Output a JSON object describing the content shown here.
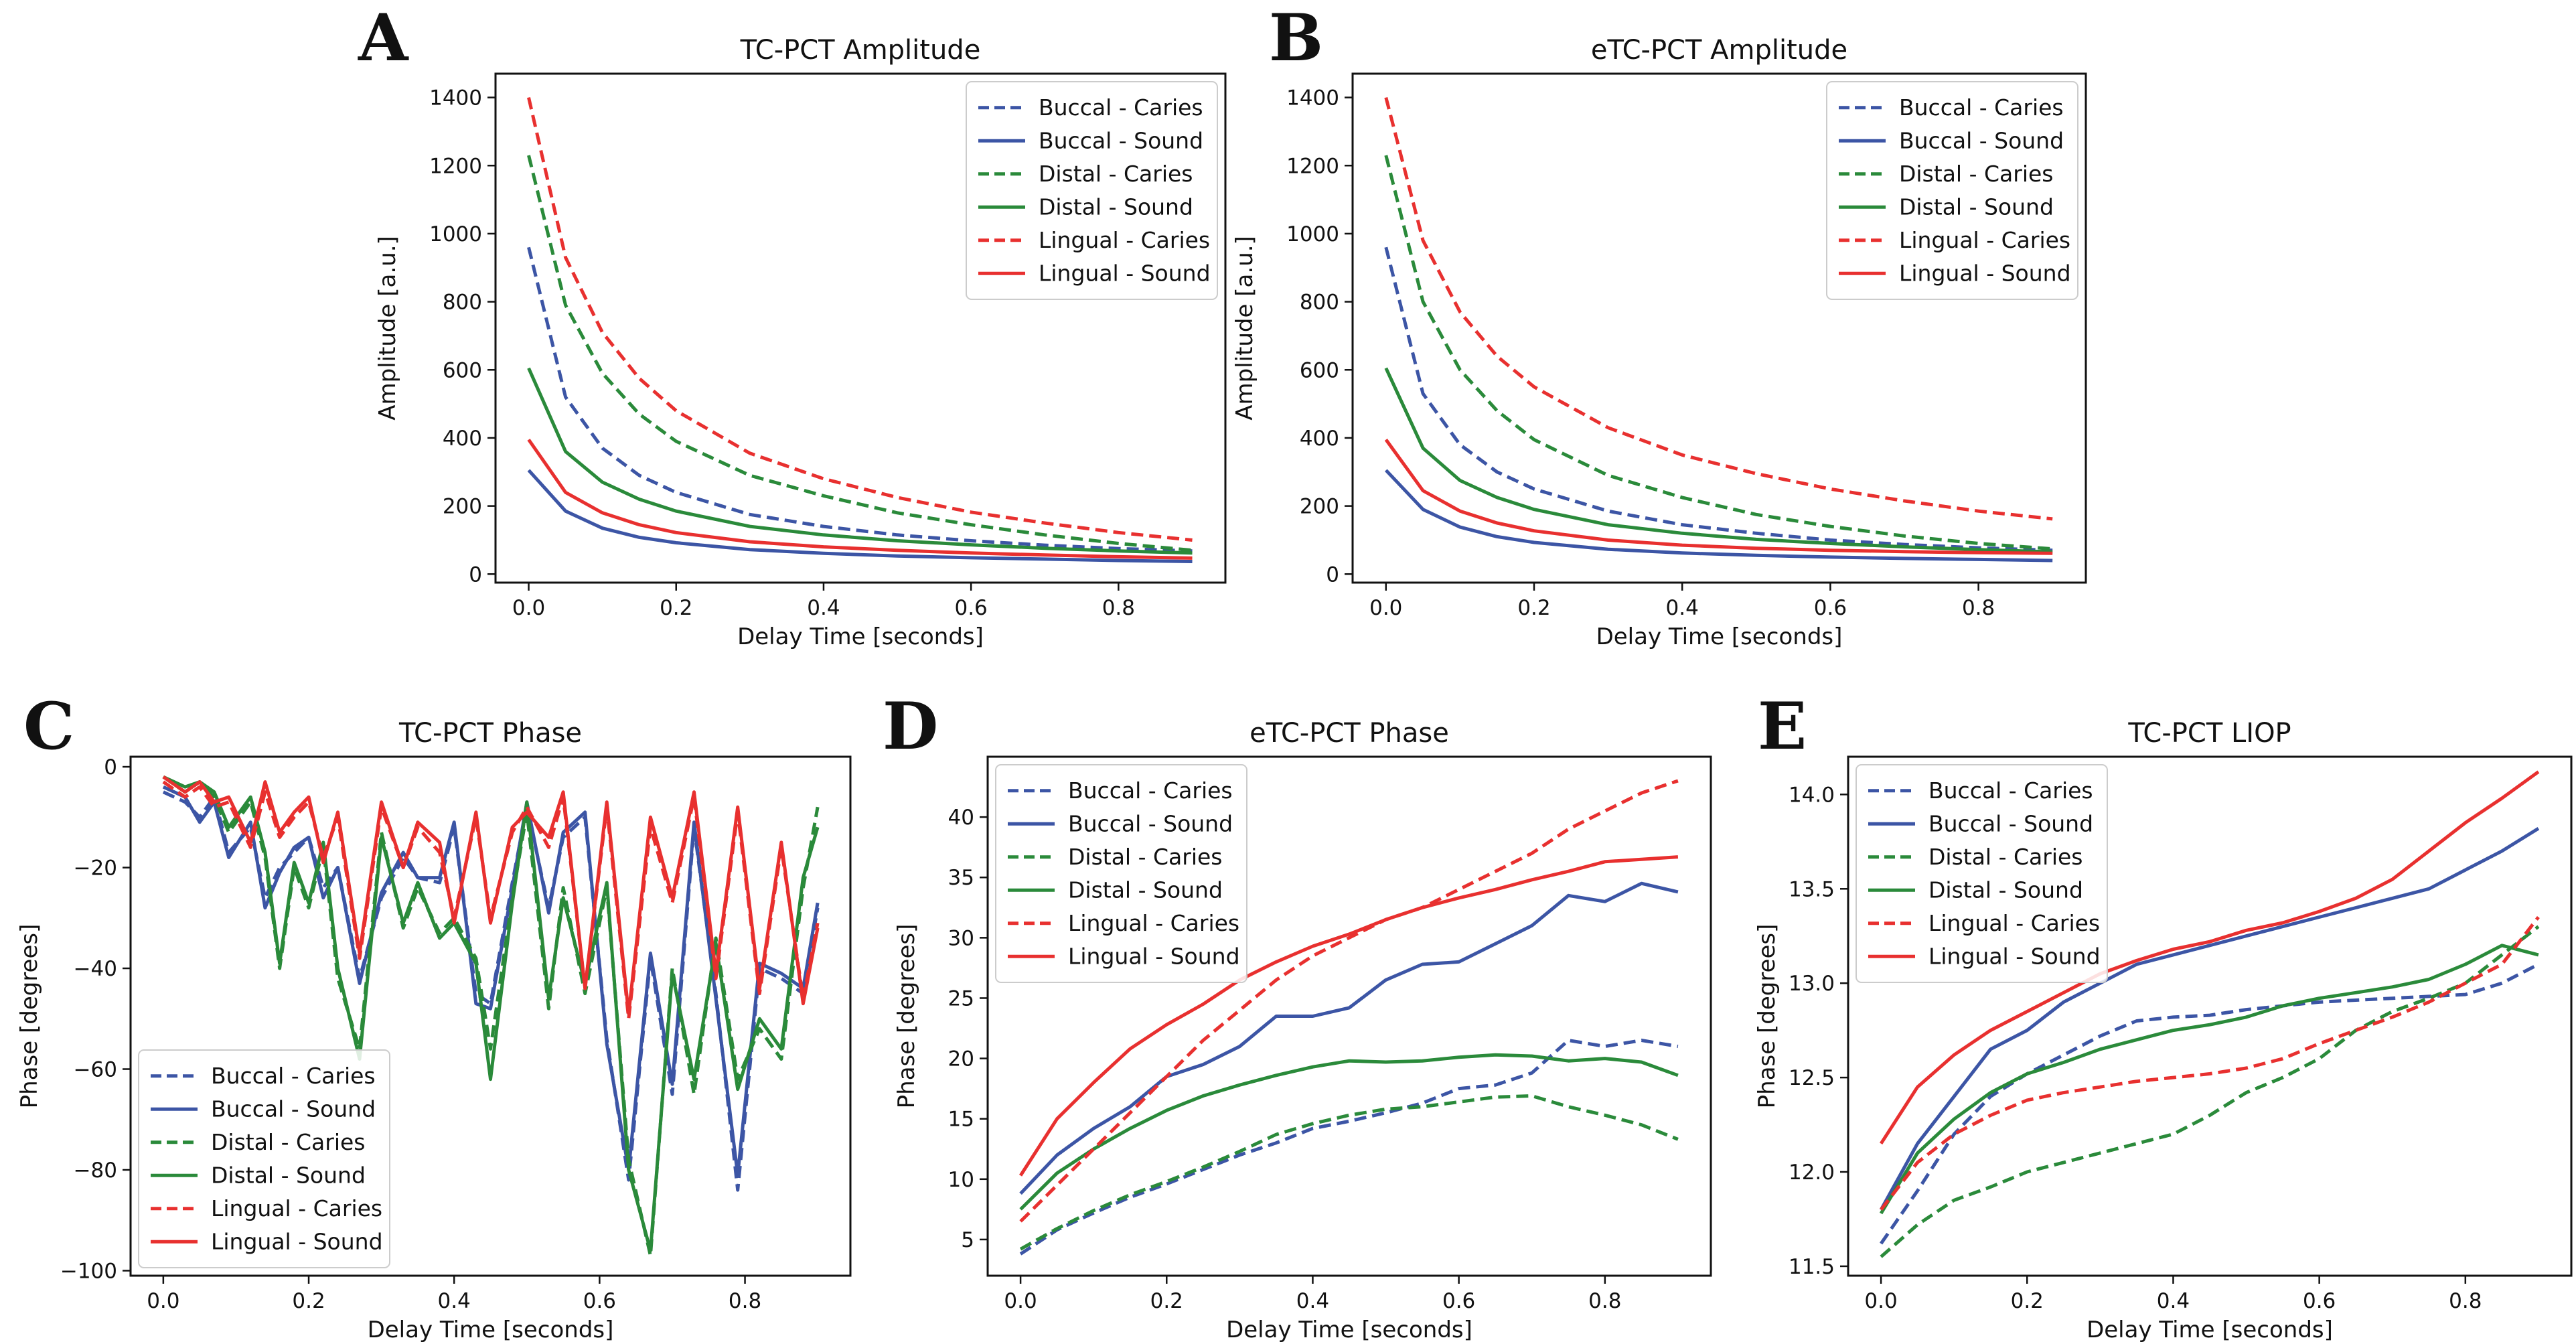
{
  "colors": {
    "Buccal": "#3c55a5",
    "Distal": "#2a8a3a",
    "Lingual": "#e8302f"
  },
  "legend_items": [
    {
      "label": "Buccal - Caries",
      "region": "Buccal",
      "dashed": true
    },
    {
      "label": "Buccal - Sound",
      "region": "Buccal",
      "dashed": false
    },
    {
      "label": "Distal - Caries",
      "region": "Distal",
      "dashed": true
    },
    {
      "label": "Distal - Sound",
      "region": "Distal",
      "dashed": false
    },
    {
      "label": "Lingual - Caries",
      "region": "Lingual",
      "dashed": true
    },
    {
      "label": "Lingual - Sound",
      "region": "Lingual",
      "dashed": false
    }
  ],
  "chart_data": [
    {
      "panel": "A",
      "type": "line",
      "title": "TC-PCT Amplitude",
      "xlabel": "Delay Time [seconds]",
      "ylabel": "Amplitude [a.u.]",
      "xlim": [
        -0.045,
        0.945
      ],
      "ylim": [
        -25,
        1470
      ],
      "xticks": [
        0.0,
        0.2,
        0.4,
        0.6,
        0.8
      ],
      "xtick_labels": [
        "0.0",
        "0.2",
        "0.4",
        "0.6",
        "0.8"
      ],
      "yticks": [
        0,
        200,
        400,
        600,
        800,
        1000,
        1200,
        1400
      ],
      "ytick_labels": [
        "0",
        "200",
        "400",
        "600",
        "800",
        "1000",
        "1200",
        "1400"
      ],
      "legend_position": "upper-right",
      "x": [
        0.0,
        0.05,
        0.1,
        0.15,
        0.2,
        0.3,
        0.4,
        0.5,
        0.6,
        0.7,
        0.8,
        0.9
      ],
      "series": [
        {
          "name": "Buccal - Caries",
          "values": [
            960,
            520,
            370,
            290,
            240,
            175,
            140,
            115,
            98,
            85,
            75,
            68
          ]
        },
        {
          "name": "Buccal - Sound",
          "values": [
            305,
            185,
            135,
            108,
            92,
            72,
            61,
            53,
            48,
            44,
            40,
            37
          ]
        },
        {
          "name": "Distal - Caries",
          "values": [
            1230,
            790,
            590,
            470,
            390,
            290,
            230,
            180,
            145,
            115,
            90,
            70
          ]
        },
        {
          "name": "Distal - Sound",
          "values": [
            605,
            360,
            270,
            220,
            185,
            140,
            115,
            98,
            86,
            76,
            68,
            62
          ]
        },
        {
          "name": "Lingual - Caries",
          "values": [
            1400,
            930,
            710,
            575,
            480,
            355,
            280,
            225,
            182,
            150,
            122,
            100
          ]
        },
        {
          "name": "Lingual - Sound",
          "values": [
            395,
            240,
            180,
            145,
            122,
            95,
            80,
            70,
            62,
            56,
            51,
            47
          ]
        }
      ]
    },
    {
      "panel": "B",
      "type": "line",
      "title": "eTC-PCT Amplitude",
      "xlabel": "Delay Time [seconds]",
      "ylabel": "Amplitude [a.u.]",
      "xlim": [
        -0.045,
        0.945
      ],
      "ylim": [
        -25,
        1470
      ],
      "xticks": [
        0.0,
        0.2,
        0.4,
        0.6,
        0.8
      ],
      "xtick_labels": [
        "0.0",
        "0.2",
        "0.4",
        "0.6",
        "0.8"
      ],
      "yticks": [
        0,
        200,
        400,
        600,
        800,
        1000,
        1200,
        1400
      ],
      "ytick_labels": [
        "0",
        "200",
        "400",
        "600",
        "800",
        "1000",
        "1200",
        "1400"
      ],
      "legend_position": "upper-right",
      "x": [
        0.0,
        0.05,
        0.1,
        0.15,
        0.2,
        0.3,
        0.4,
        0.5,
        0.6,
        0.7,
        0.8,
        0.9
      ],
      "series": [
        {
          "name": "Buccal - Caries",
          "values": [
            960,
            530,
            380,
            300,
            250,
            185,
            145,
            120,
            100,
            87,
            77,
            70
          ]
        },
        {
          "name": "Buccal - Sound",
          "values": [
            305,
            190,
            138,
            110,
            93,
            73,
            62,
            55,
            50,
            46,
            43,
            40
          ]
        },
        {
          "name": "Distal - Caries",
          "values": [
            1230,
            800,
            600,
            480,
            395,
            290,
            225,
            175,
            140,
            112,
            90,
            74
          ]
        },
        {
          "name": "Distal - Sound",
          "values": [
            605,
            370,
            275,
            225,
            190,
            145,
            120,
            102,
            90,
            80,
            72,
            65
          ]
        },
        {
          "name": "Lingual - Caries",
          "values": [
            1400,
            980,
            770,
            640,
            550,
            430,
            350,
            295,
            250,
            215,
            185,
            162
          ]
        },
        {
          "name": "Lingual - Sound",
          "values": [
            395,
            245,
            185,
            150,
            127,
            100,
            85,
            76,
            70,
            66,
            63,
            61
          ]
        }
      ]
    },
    {
      "panel": "C",
      "type": "line",
      "title": "TC-PCT Phase",
      "xlabel": "Delay Time [seconds]",
      "ylabel": "Phase [degrees]",
      "xlim": [
        -0.045,
        0.945
      ],
      "ylim": [
        -101,
        2
      ],
      "xticks": [
        0.0,
        0.2,
        0.4,
        0.6,
        0.8
      ],
      "xtick_labels": [
        "0.0",
        "0.2",
        "0.4",
        "0.6",
        "0.8"
      ],
      "yticks": [
        -100,
        -80,
        -60,
        -40,
        -20,
        0
      ],
      "ytick_labels": [
        "−100",
        "−80",
        "−60",
        "−40",
        "−20",
        "0"
      ],
      "legend_position": "lower-left",
      "x": [
        0.0,
        0.03,
        0.05,
        0.07,
        0.09,
        0.12,
        0.14,
        0.16,
        0.18,
        0.2,
        0.22,
        0.24,
        0.27,
        0.3,
        0.33,
        0.35,
        0.38,
        0.4,
        0.43,
        0.45,
        0.48,
        0.5,
        0.53,
        0.55,
        0.58,
        0.61,
        0.64,
        0.67,
        0.7,
        0.73,
        0.76,
        0.79,
        0.82,
        0.85,
        0.88,
        0.9
      ],
      "series": [
        {
          "name": "Buccal - Caries",
          "values": [
            -5,
            -7,
            -10,
            -6,
            -17,
            -12,
            -26,
            -20,
            -17,
            -14,
            -24,
            -20,
            -42,
            -26,
            -18,
            -22,
            -23,
            -12,
            -45,
            -47,
            -23,
            -8,
            -28,
            -14,
            -10,
            -54,
            -82,
            -38,
            -65,
            -12,
            -45,
            -84,
            -40,
            -42,
            -45,
            -28
          ]
        },
        {
          "name": "Buccal - Sound",
          "values": [
            -4,
            -6,
            -11,
            -7,
            -18,
            -11,
            -28,
            -21,
            -16,
            -14,
            -26,
            -20,
            -43,
            -25,
            -17,
            -22,
            -22,
            -11,
            -47,
            -48,
            -24,
            -7,
            -29,
            -13,
            -9,
            -55,
            -80,
            -37,
            -63,
            -11,
            -46,
            -81,
            -39,
            -41,
            -44,
            -27
          ]
        },
        {
          "name": "Distal - Caries",
          "values": [
            -2,
            -5,
            -3,
            -6,
            -13,
            -7,
            -18,
            -40,
            -20,
            -28,
            -16,
            -42,
            -56,
            -13,
            -32,
            -24,
            -33,
            -30,
            -38,
            -56,
            -26,
            -9,
            -48,
            -24,
            -45,
            -24,
            -78,
            -97,
            -40,
            -65,
            -34,
            -62,
            -52,
            -58,
            -24,
            -8
          ]
        },
        {
          "name": "Distal - Sound",
          "values": [
            -2,
            -4,
            -3,
            -5,
            -12,
            -6,
            -17,
            -39,
            -19,
            -27,
            -15,
            -40,
            -58,
            -14,
            -31,
            -23,
            -34,
            -31,
            -39,
            -62,
            -27,
            -7,
            -46,
            -26,
            -43,
            -23,
            -80,
            -96,
            -41,
            -62,
            -35,
            -64,
            -50,
            -56,
            -22,
            -12
          ]
        },
        {
          "name": "Lingual - Caries",
          "values": [
            -3,
            -6,
            -4,
            -8,
            -7,
            -16,
            -5,
            -14,
            -10,
            -7,
            -18,
            -10,
            -38,
            -8,
            -20,
            -12,
            -17,
            -30,
            -10,
            -30,
            -13,
            -8,
            -16,
            -6,
            -44,
            -8,
            -50,
            -12,
            -27,
            -6,
            -42,
            -9,
            -45,
            -16,
            -46,
            -31
          ]
        },
        {
          "name": "Lingual - Sound",
          "values": [
            -2,
            -5,
            -3,
            -7,
            -6,
            -15,
            -3,
            -13,
            -9,
            -6,
            -19,
            -9,
            -37,
            -7,
            -20,
            -11,
            -15,
            -31,
            -9,
            -31,
            -12,
            -9,
            -14,
            -5,
            -44,
            -7,
            -49,
            -10,
            -26,
            -5,
            -41,
            -8,
            -44,
            -15,
            -47,
            -32
          ]
        }
      ]
    },
    {
      "panel": "D",
      "type": "line",
      "title": "eTC-PCT Phase",
      "xlabel": "Delay Time [seconds]",
      "ylabel": "Phase [degrees]",
      "xlim": [
        -0.045,
        0.945
      ],
      "ylim": [
        2,
        45
      ],
      "xticks": [
        0.0,
        0.2,
        0.4,
        0.6,
        0.8
      ],
      "xtick_labels": [
        "0.0",
        "0.2",
        "0.4",
        "0.6",
        "0.8"
      ],
      "yticks": [
        5,
        10,
        15,
        20,
        25,
        30,
        35,
        40
      ],
      "ytick_labels": [
        "5",
        "10",
        "15",
        "20",
        "25",
        "30",
        "35",
        "40"
      ],
      "legend_position": "upper-left",
      "x": [
        0.0,
        0.05,
        0.1,
        0.15,
        0.2,
        0.25,
        0.3,
        0.35,
        0.4,
        0.45,
        0.5,
        0.55,
        0.6,
        0.65,
        0.7,
        0.75,
        0.8,
        0.85,
        0.9
      ],
      "series": [
        {
          "name": "Buccal - Caries",
          "values": [
            3.8,
            5.8,
            7.2,
            8.5,
            9.6,
            10.8,
            12.0,
            13.0,
            14.2,
            14.8,
            15.5,
            16.3,
            17.5,
            17.8,
            18.8,
            21.5,
            21.0,
            21.5,
            21.0
          ]
        },
        {
          "name": "Buccal - Sound",
          "values": [
            8.8,
            12.0,
            14.2,
            16.0,
            18.5,
            19.5,
            21.0,
            23.5,
            23.5,
            24.2,
            26.5,
            27.8,
            28.0,
            29.5,
            31.0,
            33.5,
            33.0,
            34.5,
            33.8
          ]
        },
        {
          "name": "Distal - Caries",
          "values": [
            4.2,
            5.9,
            7.4,
            8.7,
            9.8,
            11.0,
            12.3,
            13.7,
            14.6,
            15.3,
            15.8,
            16.0,
            16.4,
            16.8,
            16.9,
            16.0,
            15.3,
            14.5,
            13.3
          ]
        },
        {
          "name": "Distal - Sound",
          "values": [
            7.5,
            10.5,
            12.5,
            14.2,
            15.7,
            16.9,
            17.8,
            18.6,
            19.3,
            19.8,
            19.7,
            19.8,
            20.1,
            20.3,
            20.2,
            19.8,
            20.0,
            19.7,
            18.6
          ]
        },
        {
          "name": "Lingual - Caries",
          "values": [
            6.5,
            9.5,
            12.5,
            15.5,
            18.5,
            21.5,
            24.0,
            26.5,
            28.5,
            30.0,
            31.5,
            32.5,
            34.0,
            35.5,
            37.0,
            39.0,
            40.5,
            42.0,
            43.0
          ]
        },
        {
          "name": "Lingual - Sound",
          "values": [
            10.3,
            15.0,
            18.0,
            20.8,
            22.8,
            24.5,
            26.5,
            28.0,
            29.3,
            30.3,
            31.5,
            32.5,
            33.3,
            34.0,
            34.8,
            35.5,
            36.3,
            36.5,
            36.7
          ]
        }
      ]
    },
    {
      "panel": "E",
      "type": "line",
      "title": "TC-PCT LIOP",
      "xlabel": "Delay Time [seconds]",
      "ylabel": "Phase [degrees]",
      "xlim": [
        -0.045,
        0.945
      ],
      "ylim": [
        11.45,
        14.2
      ],
      "xticks": [
        0.0,
        0.2,
        0.4,
        0.6,
        0.8
      ],
      "xtick_labels": [
        "0.0",
        "0.2",
        "0.4",
        "0.6",
        "0.8"
      ],
      "yticks": [
        11.5,
        12.0,
        12.5,
        13.0,
        13.5,
        14.0
      ],
      "ytick_labels": [
        "11.5",
        "12.0",
        "12.5",
        "13.0",
        "13.5",
        "14.0"
      ],
      "legend_position": "upper-left",
      "x": [
        0.0,
        0.05,
        0.1,
        0.15,
        0.2,
        0.25,
        0.3,
        0.35,
        0.4,
        0.45,
        0.5,
        0.55,
        0.6,
        0.65,
        0.7,
        0.75,
        0.8,
        0.85,
        0.9
      ],
      "series": [
        {
          "name": "Buccal - Caries",
          "values": [
            11.62,
            11.9,
            12.2,
            12.4,
            12.52,
            12.62,
            12.72,
            12.8,
            12.82,
            12.83,
            12.86,
            12.88,
            12.9,
            12.91,
            12.92,
            12.93,
            12.94,
            13.0,
            13.1
          ]
        },
        {
          "name": "Buccal - Sound",
          "values": [
            11.8,
            12.15,
            12.4,
            12.65,
            12.75,
            12.9,
            13.0,
            13.1,
            13.15,
            13.2,
            13.25,
            13.3,
            13.35,
            13.4,
            13.45,
            13.5,
            13.6,
            13.7,
            13.82
          ]
        },
        {
          "name": "Distal - Caries",
          "values": [
            11.55,
            11.72,
            11.85,
            11.92,
            12.0,
            12.05,
            12.1,
            12.15,
            12.2,
            12.3,
            12.42,
            12.5,
            12.6,
            12.75,
            12.85,
            12.92,
            13.0,
            13.15,
            13.3
          ]
        },
        {
          "name": "Distal - Sound",
          "values": [
            11.78,
            12.1,
            12.28,
            12.42,
            12.52,
            12.58,
            12.65,
            12.7,
            12.75,
            12.78,
            12.82,
            12.88,
            12.92,
            12.95,
            12.98,
            13.02,
            13.1,
            13.2,
            13.15
          ]
        },
        {
          "name": "Lingual - Caries",
          "values": [
            11.8,
            12.05,
            12.2,
            12.3,
            12.38,
            12.42,
            12.45,
            12.48,
            12.5,
            12.52,
            12.55,
            12.6,
            12.68,
            12.75,
            12.82,
            12.9,
            13.0,
            13.1,
            13.35
          ]
        },
        {
          "name": "Lingual - Sound",
          "values": [
            12.15,
            12.45,
            12.62,
            12.75,
            12.85,
            12.95,
            13.05,
            13.12,
            13.18,
            13.22,
            13.28,
            13.32,
            13.38,
            13.45,
            13.55,
            13.7,
            13.85,
            13.98,
            14.12
          ]
        }
      ]
    }
  ]
}
